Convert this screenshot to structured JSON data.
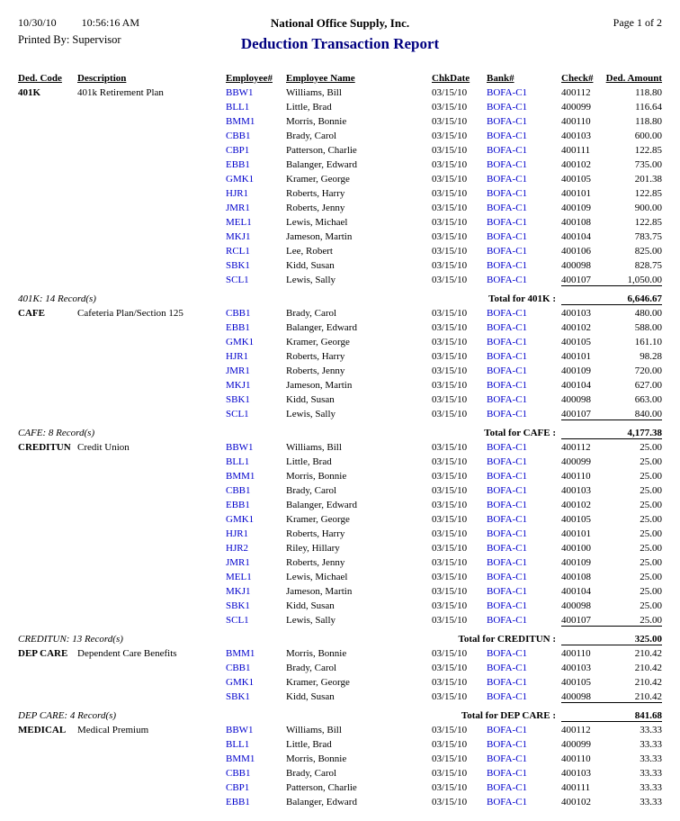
{
  "colors": {
    "link": "#0000cc",
    "title": "#000080"
  },
  "header": {
    "date": "10/30/10",
    "time": "10:56:16 AM",
    "printed_by": "Printed By: Supervisor",
    "company": "National Office Supply, Inc.",
    "report_title": "Deduction Transaction Report",
    "page_label": "Page 1 of 2"
  },
  "table": {
    "columns": [
      "Ded. Code",
      "Description",
      "Employee#",
      "Employee Name",
      "ChkDate",
      "Bank#",
      "Check#",
      "Ded. Amount"
    ],
    "groups": [
      {
        "code": "401K",
        "description": "401k Retirement Plan",
        "rows": [
          [
            "BBW1",
            "Williams, Bill",
            "03/15/10",
            "BOFA-C1",
            "400112",
            "118.80"
          ],
          [
            "BLL1",
            "Little, Brad",
            "03/15/10",
            "BOFA-C1",
            "400099",
            "116.64"
          ],
          [
            "BMM1",
            "Morris, Bonnie",
            "03/15/10",
            "BOFA-C1",
            "400110",
            "118.80"
          ],
          [
            "CBB1",
            "Brady, Carol",
            "03/15/10",
            "BOFA-C1",
            "400103",
            "600.00"
          ],
          [
            "CBP1",
            "Patterson, Charlie",
            "03/15/10",
            "BOFA-C1",
            "400111",
            "122.85"
          ],
          [
            "EBB1",
            "Balanger, Edward",
            "03/15/10",
            "BOFA-C1",
            "400102",
            "735.00"
          ],
          [
            "GMK1",
            "Kramer, George",
            "03/15/10",
            "BOFA-C1",
            "400105",
            "201.38"
          ],
          [
            "HJR1",
            "Roberts, Harry",
            "03/15/10",
            "BOFA-C1",
            "400101",
            "122.85"
          ],
          [
            "JMR1",
            "Roberts, Jenny",
            "03/15/10",
            "BOFA-C1",
            "400109",
            "900.00"
          ],
          [
            "MEL1",
            "Lewis, Michael",
            "03/15/10",
            "BOFA-C1",
            "400108",
            "122.85"
          ],
          [
            "MKJ1",
            "Jameson, Martin",
            "03/15/10",
            "BOFA-C1",
            "400104",
            "783.75"
          ],
          [
            "RCL1",
            "Lee, Robert",
            "03/15/10",
            "BOFA-C1",
            "400106",
            "825.00"
          ],
          [
            "SBK1",
            "Kidd, Susan",
            "03/15/10",
            "BOFA-C1",
            "400098",
            "828.75"
          ],
          [
            "SCL1",
            "Lewis, Sally",
            "03/15/10",
            "BOFA-C1",
            "400107",
            "1,050.00"
          ]
        ],
        "record_count_label": "401K: 14 Record(s)",
        "total_label": "Total for 401K :",
        "total_amount": "6,646.67"
      },
      {
        "code": "CAFE",
        "description": "Cafeteria Plan/Section 125",
        "rows": [
          [
            "CBB1",
            "Brady, Carol",
            "03/15/10",
            "BOFA-C1",
            "400103",
            "480.00"
          ],
          [
            "EBB1",
            "Balanger, Edward",
            "03/15/10",
            "BOFA-C1",
            "400102",
            "588.00"
          ],
          [
            "GMK1",
            "Kramer, George",
            "03/15/10",
            "BOFA-C1",
            "400105",
            "161.10"
          ],
          [
            "HJR1",
            "Roberts, Harry",
            "03/15/10",
            "BOFA-C1",
            "400101",
            "98.28"
          ],
          [
            "JMR1",
            "Roberts, Jenny",
            "03/15/10",
            "BOFA-C1",
            "400109",
            "720.00"
          ],
          [
            "MKJ1",
            "Jameson, Martin",
            "03/15/10",
            "BOFA-C1",
            "400104",
            "627.00"
          ],
          [
            "SBK1",
            "Kidd, Susan",
            "03/15/10",
            "BOFA-C1",
            "400098",
            "663.00"
          ],
          [
            "SCL1",
            "Lewis, Sally",
            "03/15/10",
            "BOFA-C1",
            "400107",
            "840.00"
          ]
        ],
        "record_count_label": "CAFE: 8 Record(s)",
        "total_label": "Total for CAFE :",
        "total_amount": "4,177.38"
      },
      {
        "code": "CREDITUN",
        "description": "Credit Union",
        "rows": [
          [
            "BBW1",
            "Williams, Bill",
            "03/15/10",
            "BOFA-C1",
            "400112",
            "25.00"
          ],
          [
            "BLL1",
            "Little, Brad",
            "03/15/10",
            "BOFA-C1",
            "400099",
            "25.00"
          ],
          [
            "BMM1",
            "Morris, Bonnie",
            "03/15/10",
            "BOFA-C1",
            "400110",
            "25.00"
          ],
          [
            "CBB1",
            "Brady, Carol",
            "03/15/10",
            "BOFA-C1",
            "400103",
            "25.00"
          ],
          [
            "EBB1",
            "Balanger, Edward",
            "03/15/10",
            "BOFA-C1",
            "400102",
            "25.00"
          ],
          [
            "GMK1",
            "Kramer, George",
            "03/15/10",
            "BOFA-C1",
            "400105",
            "25.00"
          ],
          [
            "HJR1",
            "Roberts, Harry",
            "03/15/10",
            "BOFA-C1",
            "400101",
            "25.00"
          ],
          [
            "HJR2",
            "Riley, Hillary",
            "03/15/10",
            "BOFA-C1",
            "400100",
            "25.00"
          ],
          [
            "JMR1",
            "Roberts, Jenny",
            "03/15/10",
            "BOFA-C1",
            "400109",
            "25.00"
          ],
          [
            "MEL1",
            "Lewis, Michael",
            "03/15/10",
            "BOFA-C1",
            "400108",
            "25.00"
          ],
          [
            "MKJ1",
            "Jameson, Martin",
            "03/15/10",
            "BOFA-C1",
            "400104",
            "25.00"
          ],
          [
            "SBK1",
            "Kidd, Susan",
            "03/15/10",
            "BOFA-C1",
            "400098",
            "25.00"
          ],
          [
            "SCL1",
            "Lewis, Sally",
            "03/15/10",
            "BOFA-C1",
            "400107",
            "25.00"
          ]
        ],
        "record_count_label": "CREDITUN: 13 Record(s)",
        "total_label": "Total for CREDITUN :",
        "total_amount": "325.00"
      },
      {
        "code": "DEP CARE",
        "description": "Dependent Care Benefits",
        "rows": [
          [
            "BMM1",
            "Morris, Bonnie",
            "03/15/10",
            "BOFA-C1",
            "400110",
            "210.42"
          ],
          [
            "CBB1",
            "Brady, Carol",
            "03/15/10",
            "BOFA-C1",
            "400103",
            "210.42"
          ],
          [
            "GMK1",
            "Kramer, George",
            "03/15/10",
            "BOFA-C1",
            "400105",
            "210.42"
          ],
          [
            "SBK1",
            "Kidd, Susan",
            "03/15/10",
            "BOFA-C1",
            "400098",
            "210.42"
          ]
        ],
        "record_count_label": "DEP CARE: 4 Record(s)",
        "total_label": "Total for DEP CARE :",
        "total_amount": "841.68"
      },
      {
        "code": "MEDICAL",
        "description": "Medical Premium",
        "rows": [
          [
            "BBW1",
            "Williams, Bill",
            "03/15/10",
            "BOFA-C1",
            "400112",
            "33.33"
          ],
          [
            "BLL1",
            "Little, Brad",
            "03/15/10",
            "BOFA-C1",
            "400099",
            "33.33"
          ],
          [
            "BMM1",
            "Morris, Bonnie",
            "03/15/10",
            "BOFA-C1",
            "400110",
            "33.33"
          ],
          [
            "CBB1",
            "Brady, Carol",
            "03/15/10",
            "BOFA-C1",
            "400103",
            "33.33"
          ],
          [
            "CBP1",
            "Patterson, Charlie",
            "03/15/10",
            "BOFA-C1",
            "400111",
            "33.33"
          ],
          [
            "EBB1",
            "Balanger, Edward",
            "03/15/10",
            "BOFA-C1",
            "400102",
            "33.33"
          ]
        ]
      }
    ]
  }
}
